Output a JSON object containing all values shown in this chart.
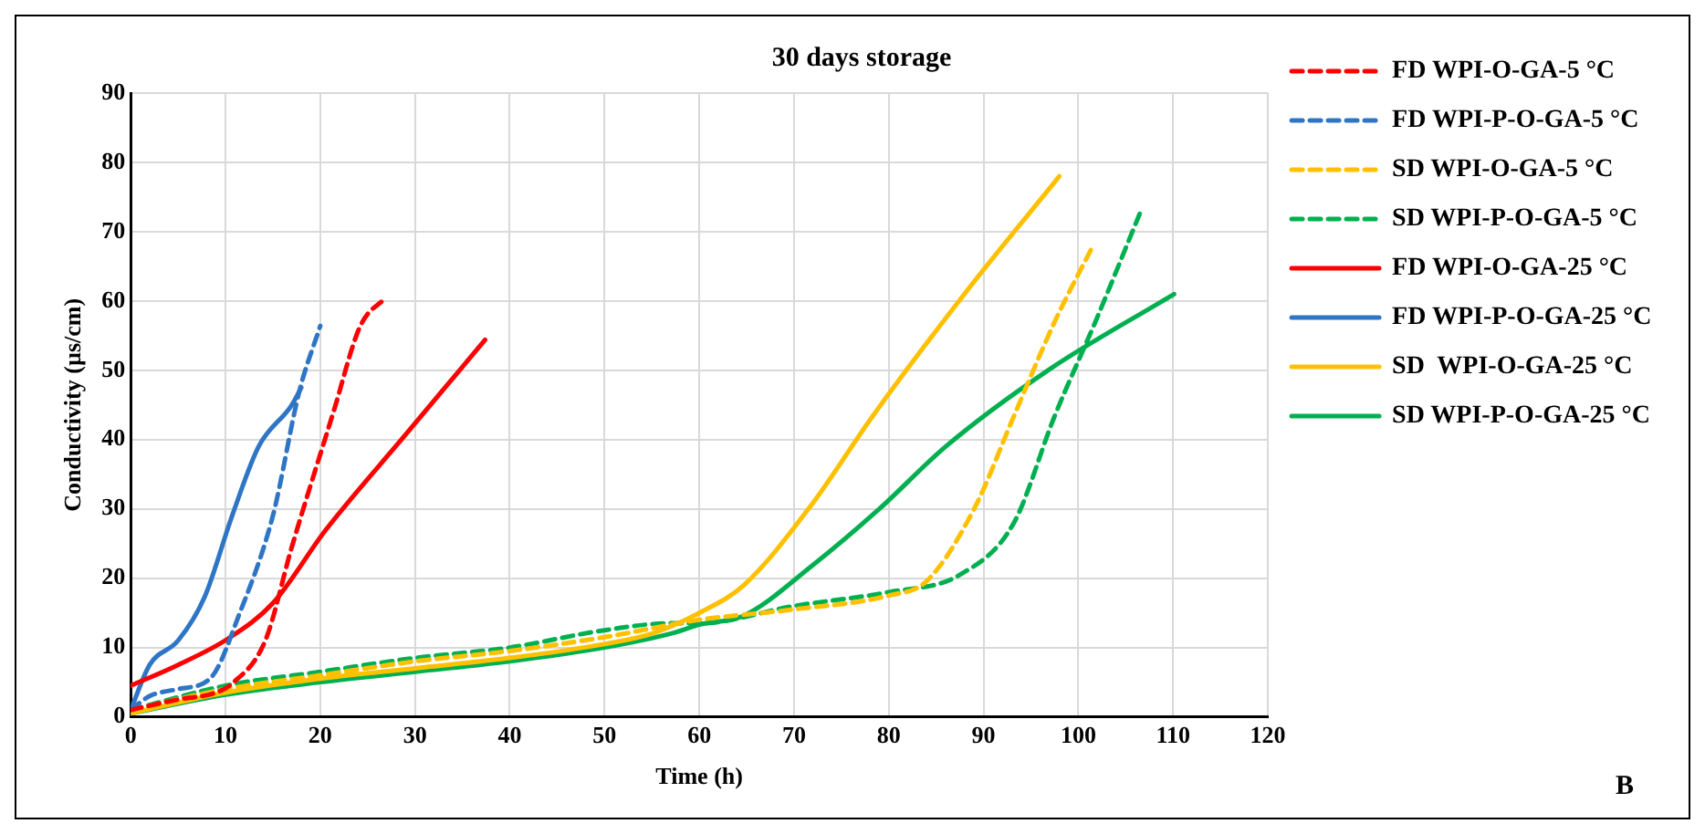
{
  "chart_data": {
    "type": "line",
    "title": "30 days storage",
    "xlabel": "Time (h)",
    "ylabel": "Conductivity (µs/cm)",
    "annotations": [
      "B"
    ],
    "xlim": [
      0,
      120
    ],
    "xticks": [
      0,
      10,
      20,
      30,
      40,
      50,
      60,
      70,
      80,
      90,
      100,
      110,
      120
    ],
    "ylim": [
      0,
      90
    ],
    "yticks": [
      0,
      10,
      20,
      30,
      40,
      50,
      60,
      70,
      80,
      90
    ],
    "grid": true,
    "legend": "right",
    "marker": "none",
    "series": [
      {
        "name": "FD WPI-O-GA-5 °C",
        "color": "#ff0000",
        "line_style": "dashed",
        "x": [
          0,
          5,
          9,
          10.7,
          14.2,
          17,
          21.4,
          24.2,
          27
        ],
        "values": [
          1,
          2.5,
          3.5,
          4.8,
          11,
          24.5,
          44,
          56.3,
          60.6
        ]
      },
      {
        "name": "FD WPI-P-O-GA-5 °C",
        "color": "#2e75c6",
        "line_style": "dashed",
        "x": [
          0,
          2,
          5,
          8.5,
          11.4,
          15,
          17.8,
          20
        ],
        "values": [
          1,
          3,
          4,
          5.7,
          14.6,
          29,
          47,
          56.4
        ]
      },
      {
        "name": "SD WPI-O-GA-5 °C",
        "color": "#ffc000",
        "line_style": "dashed",
        "x": [
          0,
          10,
          20,
          30,
          40,
          50,
          60,
          70,
          80,
          84,
          89,
          93.2,
          97.5,
          101.4
        ],
        "values": [
          1,
          4,
          6,
          8,
          9.5,
          11.5,
          14,
          15.5,
          17.5,
          19.6,
          30,
          43.4,
          57,
          67.6
        ]
      },
      {
        "name": "SD WPI-P-O-GA-5 °C",
        "color": "#00b050",
        "line_style": "dashed",
        "x": [
          0,
          10,
          20,
          30,
          40,
          50,
          57,
          60,
          70,
          80,
          87.5,
          93.2,
          97.5,
          101.8,
          106.6
        ],
        "values": [
          1,
          4.5,
          6.5,
          8.5,
          10,
          12.5,
          13.5,
          13.5,
          16,
          18,
          20.5,
          28,
          43.4,
          57,
          73
        ]
      },
      {
        "name": "FD WPI-O-GA-25 °C",
        "color": "#ff0000",
        "line_style": "solid",
        "x": [
          0,
          5,
          10.3,
          15,
          20.6,
          29,
          37.4
        ],
        "values": [
          4.5,
          7.5,
          11.3,
          16.4,
          27,
          40.7,
          54.4
        ]
      },
      {
        "name": "FD WPI-P-O-GA-25 °C",
        "color": "#2e75c6",
        "line_style": "solid",
        "x": [
          0,
          2,
          5,
          7.8,
          10.7,
          13.5,
          17,
          18
        ],
        "values": [
          1,
          7.5,
          11,
          17.3,
          29,
          39,
          45,
          47.5
        ]
      },
      {
        "name": "SD  WPI-O-GA-25 °C",
        "color": "#ffc000",
        "line_style": "solid",
        "x": [
          0,
          10,
          20,
          30,
          40,
          50,
          55,
          60,
          64.7,
          71.9,
          78.3,
          88.2,
          98
        ],
        "values": [
          0.5,
          3.5,
          5.5,
          7,
          8.5,
          10.5,
          12,
          15,
          19,
          30.7,
          43.4,
          61.4,
          78
        ]
      },
      {
        "name": "SD WPI-P-O-GA-25 °C",
        "color": "#00b050",
        "line_style": "solid",
        "x": [
          0,
          10,
          20,
          30,
          40,
          50,
          57,
          60,
          64.7,
          71.9,
          79,
          86,
          96.8,
          110.1
        ],
        "values": [
          0.5,
          3.2,
          5,
          6.5,
          8,
          10,
          12,
          13.3,
          14.6,
          21.8,
          30,
          39,
          50,
          61
        ]
      }
    ]
  }
}
